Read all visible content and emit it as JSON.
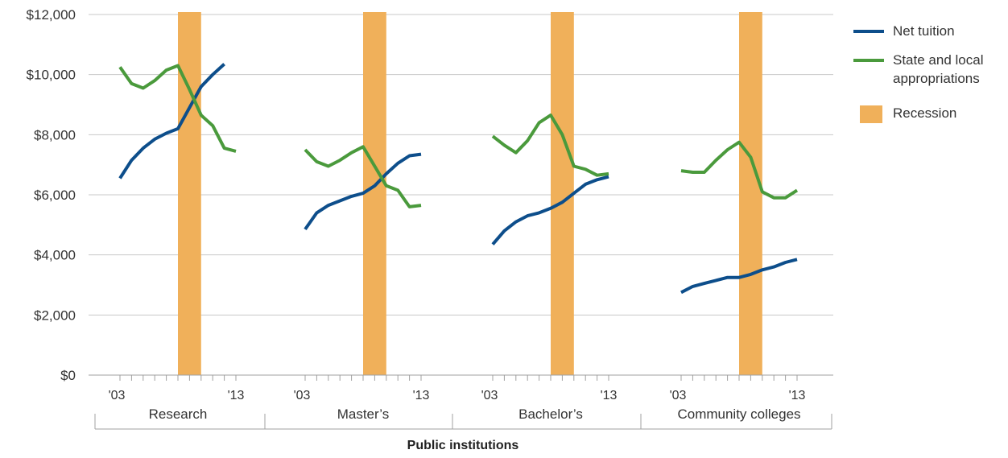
{
  "chart_data": {
    "type": "line",
    "xlabel": "Public institutions",
    "ylabel": "",
    "ylim": [
      0,
      12000
    ],
    "yticks": [
      0,
      2000,
      4000,
      6000,
      8000,
      10000,
      12000
    ],
    "ytick_labels": [
      "$0",
      "$2,000",
      "$4,000",
      "$6,000",
      "$8,000",
      "$10,000",
      "$12,000"
    ],
    "grid": true,
    "legend_position": "top-right",
    "x": [
      2003,
      2004,
      2005,
      2006,
      2007,
      2008,
      2009,
      2010,
      2011,
      2012,
      2013
    ],
    "x_start_label": "'03",
    "x_end_label": "'13",
    "recession": {
      "name": "Recession",
      "from": 2008,
      "to": 2010,
      "color": "#f0b05a"
    },
    "series_meta": [
      {
        "key": "net_tuition",
        "name": "Net tuition",
        "color": "#0d4e8b"
      },
      {
        "key": "state_local",
        "name": "State and local appropriations",
        "color": "#4a9a3c"
      }
    ],
    "legend_lines": {
      "net_tuition": [
        "Net tuition"
      ],
      "state_local": [
        "State and local",
        "appropriations"
      ],
      "recession": [
        "Recession"
      ]
    },
    "groups": [
      {
        "label": "Research",
        "net_tuition": [
          6550,
          7150,
          7550,
          7850,
          8050,
          8200,
          8900,
          9600,
          10000,
          10350,
          null
        ],
        "state_local": [
          10250,
          9700,
          9550,
          9800,
          10150,
          10300,
          9500,
          8650,
          8300,
          7550,
          7450
        ]
      },
      {
        "label": "Master’s",
        "net_tuition": [
          4850,
          5400,
          5650,
          5800,
          5950,
          6050,
          6300,
          6700,
          7050,
          7300,
          7350
        ],
        "state_local": [
          7500,
          7100,
          6950,
          7150,
          7400,
          7600,
          6950,
          6300,
          6150,
          5600,
          5650
        ]
      },
      {
        "label": "Bachelor’s",
        "net_tuition": [
          4350,
          4800,
          5100,
          5300,
          5400,
          5550,
          5750,
          6050,
          6350,
          6500,
          6600
        ],
        "state_local": [
          7950,
          7650,
          7400,
          7800,
          8400,
          8650,
          8000,
          6950,
          6850,
          6650,
          6700
        ]
      },
      {
        "label": "Community colleges",
        "net_tuition": [
          2750,
          2950,
          3050,
          3150,
          3250,
          3250,
          3350,
          3500,
          3600,
          3750,
          3850
        ],
        "state_local": [
          6800,
          6750,
          6750,
          7150,
          7500,
          7750,
          7250,
          6100,
          5900,
          5900,
          6150
        ]
      }
    ]
  }
}
